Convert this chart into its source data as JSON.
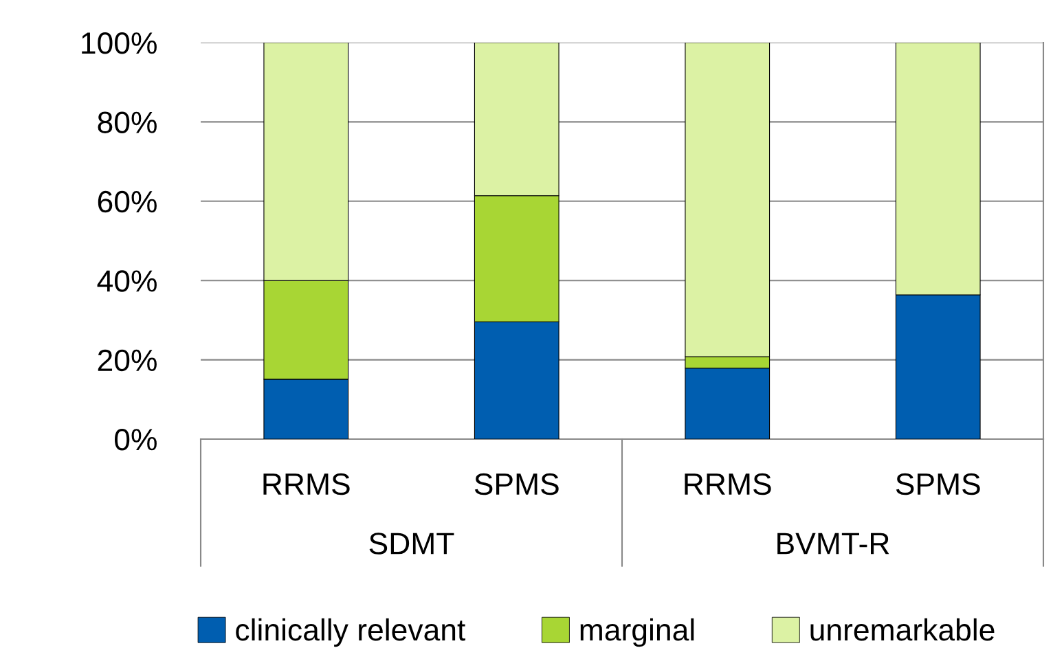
{
  "chart_data": {
    "type": "bar",
    "stacked": true,
    "categories": [
      "RRMS",
      "SPMS",
      "RRMS",
      "SPMS"
    ],
    "annotations": [
      "SDMT",
      "BVMT-R"
    ],
    "series": [
      {
        "name": "clinically relevant",
        "color": "#005eb0",
        "values": [
          15.1,
          29.6,
          17.9,
          36.4
        ]
      },
      {
        "name": "marginal",
        "color": "#a8d634",
        "values": [
          24.9,
          31.8,
          2.9,
          0
        ]
      },
      {
        "name": "unremarkable",
        "color": "#dcf2a4",
        "values": [
          60.0,
          38.6,
          79.2,
          63.6
        ]
      }
    ],
    "ylim": [
      0,
      100
    ],
    "yticks": [
      {
        "value": 0,
        "label": "0%"
      },
      {
        "value": 20,
        "label": "20%"
      },
      {
        "value": 40,
        "label": "40%"
      },
      {
        "value": 60,
        "label": "60%"
      },
      {
        "value": 80,
        "label": "80%"
      },
      {
        "value": 100,
        "label": "100%"
      }
    ],
    "grid": "y",
    "legend": "bottom"
  }
}
